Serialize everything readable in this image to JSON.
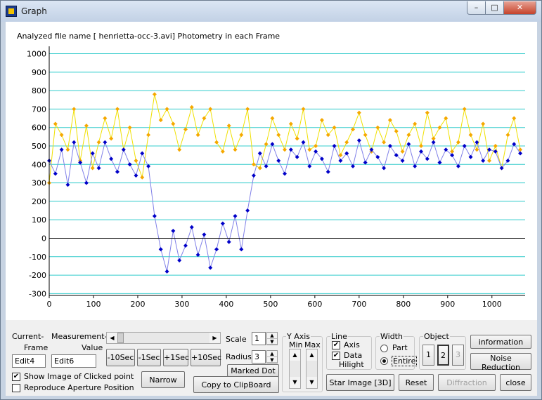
{
  "window": {
    "title": "Graph",
    "min_glyph": "–",
    "max_glyph": "□",
    "close_glyph": "✕"
  },
  "chart_data": {
    "type": "scatter",
    "title": "Analyzed file name [ henrietta-occ-3.avi]   Photometry in each Frame",
    "xlabel": "",
    "ylabel": "",
    "xlim": [
      0,
      1075
    ],
    "ylim": [
      -310,
      1040
    ],
    "x_ticks": [
      0,
      100,
      200,
      300,
      400,
      500,
      600,
      700,
      800,
      900,
      1000
    ],
    "y_ticks": [
      -300,
      -200,
      -100,
      0,
      100,
      200,
      300,
      400,
      500,
      600,
      700,
      800,
      900,
      1000
    ],
    "grid": true,
    "series": [
      {
        "color": "#f5a800",
        "line_color": "#f0e000",
        "x": [
          0,
          14,
          28,
          42,
          56,
          70,
          84,
          98,
          112,
          126,
          140,
          154,
          168,
          182,
          196,
          210,
          224,
          238,
          252,
          266,
          280,
          294,
          308,
          322,
          336,
          350,
          364,
          378,
          392,
          406,
          420,
          434,
          448,
          462,
          476,
          490,
          504,
          518,
          532,
          546,
          560,
          574,
          588,
          602,
          616,
          630,
          644,
          658,
          672,
          686,
          700,
          714,
          728,
          742,
          756,
          770,
          784,
          798,
          812,
          826,
          840,
          854,
          868,
          882,
          896,
          910,
          924,
          938,
          952,
          966,
          980,
          994,
          1008,
          1022,
          1036,
          1050,
          1064
        ],
        "y": [
          300,
          620,
          560,
          480,
          700,
          420,
          610,
          380,
          520,
          650,
          540,
          700,
          480,
          600,
          420,
          330,
          560,
          780,
          640,
          700,
          620,
          480,
          590,
          710,
          560,
          650,
          700,
          520,
          470,
          610,
          480,
          560,
          700,
          400,
          380,
          510,
          650,
          560,
          480,
          620,
          540,
          700,
          480,
          500,
          640,
          560,
          600,
          450,
          520,
          590,
          680,
          560,
          470,
          600,
          520,
          640,
          580,
          470,
          560,
          620,
          500,
          680,
          540,
          600,
          650,
          470,
          520,
          700,
          560,
          480,
          620,
          420,
          500,
          380,
          560,
          650,
          480
        ]
      },
      {
        "color": "#0000c8",
        "line_color": "#8080e8",
        "x": [
          0,
          14,
          28,
          42,
          56,
          70,
          84,
          98,
          112,
          126,
          140,
          154,
          168,
          182,
          196,
          210,
          224,
          238,
          252,
          266,
          280,
          294,
          308,
          322,
          336,
          350,
          364,
          378,
          392,
          406,
          420,
          434,
          448,
          462,
          476,
          490,
          504,
          518,
          532,
          546,
          560,
          574,
          588,
          602,
          616,
          630,
          644,
          658,
          672,
          686,
          700,
          714,
          728,
          742,
          756,
          770,
          784,
          798,
          812,
          826,
          840,
          854,
          868,
          882,
          896,
          910,
          924,
          938,
          952,
          966,
          980,
          994,
          1008,
          1022,
          1036,
          1050,
          1064
        ],
        "y": [
          420,
          350,
          480,
          290,
          520,
          410,
          300,
          460,
          380,
          520,
          430,
          360,
          480,
          400,
          340,
          460,
          390,
          120,
          -60,
          -180,
          40,
          -120,
          -40,
          60,
          -90,
          20,
          -160,
          -60,
          80,
          -20,
          120,
          -60,
          150,
          340,
          460,
          390,
          510,
          420,
          350,
          480,
          440,
          520,
          390,
          470,
          430,
          360,
          500,
          420,
          460,
          390,
          530,
          410,
          480,
          440,
          380,
          500,
          450,
          420,
          510,
          390,
          470,
          430,
          520,
          410,
          480,
          450,
          390,
          500,
          440,
          520,
          420,
          480,
          470,
          380,
          420,
          510,
          460
        ]
      }
    ]
  },
  "controls": {
    "current_frame": {
      "label1": "Current-",
      "label2": "Frame",
      "value": "Edit4"
    },
    "measurement_value": {
      "label1": "Measurement-",
      "label2": "Value",
      "value": "Edit6"
    },
    "scroll_left": "◀",
    "scroll_right": "▶",
    "seek_buttons": [
      "-10Sec",
      "-1Sec",
      "+1Sec",
      "+10Sec"
    ],
    "scale": {
      "label": "Scale",
      "value": "1"
    },
    "radius": {
      "label": "Radius",
      "value": "3"
    },
    "marked_dot": "Marked Dot",
    "show_image_clicked": {
      "label": "Show Image of Clicked point",
      "checked": "✔"
    },
    "reproduce_aperture": {
      "label": "Reproduce Aperture Position",
      "checked": ""
    },
    "narrow": "Narrow",
    "copy_clipboard": "Copy to ClipBoard",
    "y_axis": {
      "caption": "Y Axis",
      "min": "Min",
      "max": "Max",
      "up": "▲",
      "down": "▼"
    },
    "line_group": {
      "caption": "Line",
      "axis": "Axis",
      "data": "Data",
      "hilight": "Hilight",
      "check": "✔"
    },
    "width_group": {
      "caption": "Width",
      "part": "Part",
      "entire": "Entire"
    },
    "object_group": {
      "caption": "Object",
      "items": [
        "1",
        "2",
        "3"
      ]
    },
    "information": "information",
    "noise_reduction": "Noise Reduction",
    "star_image": "Star Image [3D]",
    "reset": "Reset",
    "diffraction": "Diffraction",
    "close": "close"
  }
}
